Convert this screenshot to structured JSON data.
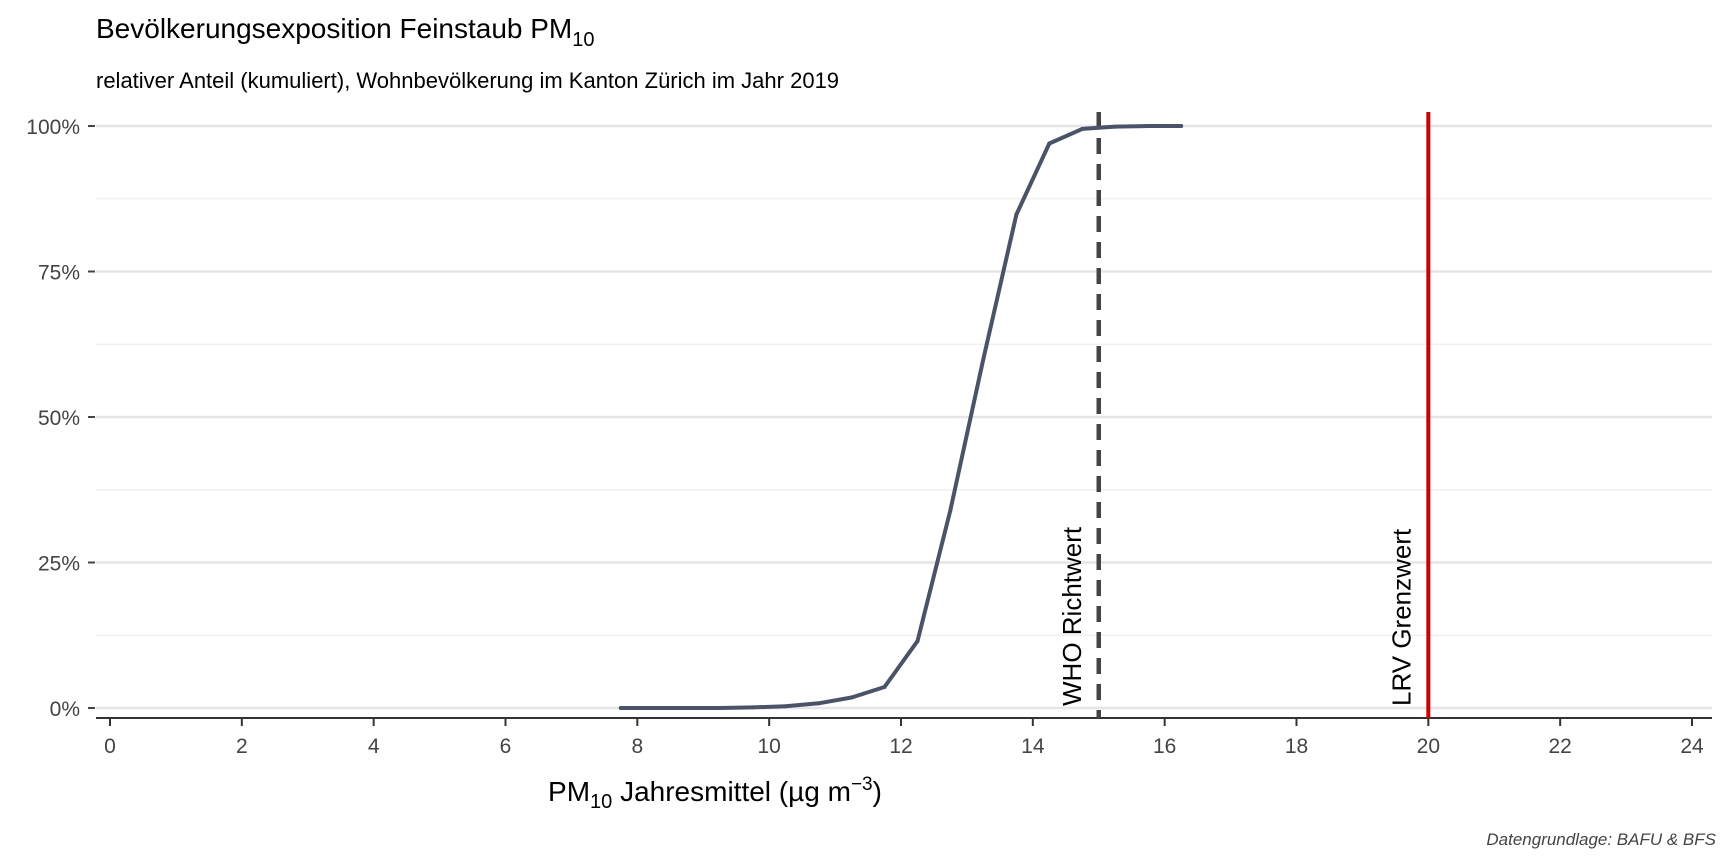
{
  "chart_data": {
    "type": "line",
    "title_main": "Bevölkerungsexposition Feinstaub PM",
    "title_sub": "10",
    "subtitle": "relativer Anteil (kumuliert), Wohnbevölkerung im Kanton Zürich im Jahr 2019",
    "xlabel_pre": "PM",
    "xlabel_sub": "10",
    "xlabel_post": " Jahresmittel (µg m",
    "xlabel_sup": "−3",
    "xlabel_close": ")",
    "caption": "Datengrundlage: BAFU & BFS",
    "xlim": [
      0,
      24
    ],
    "ylim": [
      0,
      1
    ],
    "x_ticks": [
      0,
      2,
      4,
      6,
      8,
      10,
      12,
      14,
      16,
      18,
      20,
      22,
      24
    ],
    "y_ticks": [
      0,
      0.25,
      0.5,
      0.75,
      1
    ],
    "y_tick_labels": [
      "0%",
      "25%",
      "50%",
      "75%",
      "100%"
    ],
    "grid": true,
    "series": [
      {
        "color": "#4a5368",
        "points": [
          [
            7.75,
            0.0
          ],
          [
            8.25,
            0.0
          ],
          [
            8.75,
            0.0
          ],
          [
            9.25,
            0.0
          ],
          [
            9.75,
            0.001
          ],
          [
            10.25,
            0.003
          ],
          [
            10.75,
            0.008
          ],
          [
            11.25,
            0.018
          ],
          [
            11.75,
            0.036
          ],
          [
            12.25,
            0.115
          ],
          [
            12.75,
            0.34
          ],
          [
            13.25,
            0.6
          ],
          [
            13.75,
            0.848
          ],
          [
            14.25,
            0.97
          ],
          [
            14.75,
            0.995
          ],
          [
            15.25,
            0.999
          ],
          [
            15.75,
            1.0
          ],
          [
            16.25,
            1.0
          ]
        ]
      }
    ],
    "reference_lines": [
      {
        "x": 15,
        "label": "WHO Richtwert",
        "style": "dashed",
        "color": "#444444"
      },
      {
        "x": 20,
        "label": "LRV Grenzwert",
        "style": "solid",
        "color": "#cc0000"
      }
    ]
  }
}
